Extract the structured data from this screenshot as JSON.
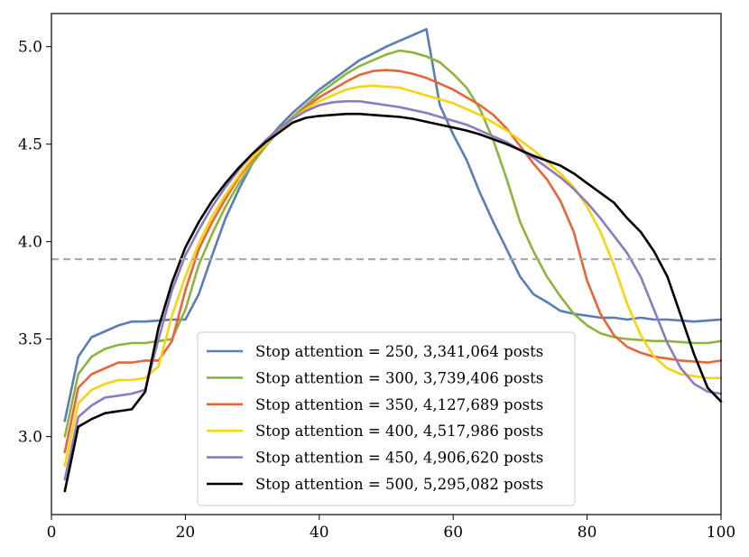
{
  "chart_data": {
    "type": "line",
    "title": "",
    "xlabel": "",
    "ylabel": "",
    "xlim": [
      0,
      100
    ],
    "ylim": [
      2.6,
      5.17
    ],
    "xticks": [
      0,
      20,
      40,
      60,
      80,
      100
    ],
    "xtick_labels": [
      "0",
      "20",
      "40",
      "60",
      "80",
      "100"
    ],
    "yticks": [
      3.0,
      3.5,
      4.0,
      4.5,
      5.0
    ],
    "ytick_labels": [
      "3.0",
      "3.5",
      "4.0",
      "4.5",
      "5.0"
    ],
    "grid": false,
    "legend_position": "bottom-center",
    "reference_line": {
      "y": 3.91,
      "style": "dashed",
      "color": "#aaaaaa"
    },
    "series": [
      {
        "name": "Stop attention = 250, 3,341,064 posts",
        "color": "#5a7db5",
        "x": [
          2,
          4,
          6,
          8,
          10,
          12,
          14,
          16,
          18,
          20,
          22,
          24,
          26,
          28,
          30,
          32,
          34,
          36,
          38,
          40,
          42,
          44,
          46,
          48,
          50,
          52,
          54,
          56,
          58,
          60,
          62,
          64,
          66,
          68,
          70,
          72,
          74,
          76,
          78,
          80,
          82,
          84,
          86,
          88,
          90,
          92,
          94,
          96,
          98,
          100
        ],
        "y": [
          3.08,
          3.41,
          3.51,
          3.54,
          3.57,
          3.59,
          3.59,
          3.595,
          3.6,
          3.6,
          3.73,
          3.93,
          4.12,
          4.27,
          4.4,
          4.51,
          4.59,
          4.66,
          4.72,
          4.78,
          4.83,
          4.88,
          4.93,
          4.965,
          5.0,
          5.03,
          5.06,
          5.09,
          4.7,
          4.55,
          4.42,
          4.25,
          4.1,
          3.96,
          3.82,
          3.73,
          3.69,
          3.645,
          3.63,
          3.62,
          3.61,
          3.61,
          3.6,
          3.61,
          3.6,
          3.6,
          3.595,
          3.59,
          3.595,
          3.6
        ]
      },
      {
        "name": "Stop attention = 300, 3,739,406 posts",
        "color": "#8db53c",
        "x": [
          2,
          4,
          6,
          8,
          10,
          12,
          14,
          16,
          18,
          20,
          22,
          24,
          26,
          28,
          30,
          32,
          34,
          36,
          38,
          40,
          42,
          44,
          46,
          48,
          50,
          52,
          54,
          56,
          58,
          60,
          62,
          64,
          66,
          68,
          70,
          72,
          74,
          76,
          78,
          80,
          82,
          84,
          86,
          88,
          90,
          92,
          94,
          96,
          98,
          100
        ],
        "y": [
          3.0,
          3.32,
          3.41,
          3.45,
          3.47,
          3.48,
          3.48,
          3.49,
          3.5,
          3.65,
          3.88,
          4.04,
          4.18,
          4.3,
          4.4,
          4.49,
          4.57,
          4.64,
          4.7,
          4.76,
          4.81,
          4.86,
          4.9,
          4.93,
          4.96,
          4.98,
          4.97,
          4.95,
          4.92,
          4.86,
          4.79,
          4.68,
          4.52,
          4.32,
          4.1,
          3.95,
          3.82,
          3.72,
          3.63,
          3.57,
          3.53,
          3.51,
          3.5,
          3.495,
          3.49,
          3.49,
          3.485,
          3.48,
          3.48,
          3.49
        ]
      },
      {
        "name": "Stop attention = 350, 4,127,689 posts",
        "color": "#e8643a",
        "x": [
          2,
          4,
          6,
          8,
          10,
          12,
          14,
          16,
          18,
          20,
          22,
          24,
          26,
          28,
          30,
          32,
          34,
          36,
          38,
          40,
          42,
          44,
          46,
          48,
          50,
          52,
          54,
          56,
          58,
          60,
          62,
          64,
          66,
          68,
          70,
          72,
          74,
          76,
          78,
          80,
          82,
          84,
          86,
          88,
          90,
          92,
          94,
          96,
          98,
          100
        ],
        "y": [
          2.92,
          3.25,
          3.32,
          3.35,
          3.38,
          3.38,
          3.39,
          3.39,
          3.49,
          3.75,
          3.96,
          4.1,
          4.22,
          4.33,
          4.42,
          4.5,
          4.57,
          4.63,
          4.69,
          4.74,
          4.78,
          4.82,
          4.855,
          4.875,
          4.88,
          4.875,
          4.86,
          4.84,
          4.81,
          4.78,
          4.74,
          4.7,
          4.65,
          4.58,
          4.49,
          4.4,
          4.32,
          4.21,
          4.05,
          3.8,
          3.63,
          3.52,
          3.46,
          3.43,
          3.41,
          3.4,
          3.39,
          3.385,
          3.38,
          3.39
        ]
      },
      {
        "name": "Stop attention = 400, 4,517,986 posts",
        "color": "#f7d40f",
        "x": [
          2,
          4,
          6,
          8,
          10,
          12,
          14,
          16,
          18,
          20,
          22,
          24,
          26,
          28,
          30,
          32,
          34,
          36,
          38,
          40,
          42,
          44,
          46,
          48,
          50,
          52,
          54,
          56,
          58,
          60,
          62,
          64,
          66,
          68,
          70,
          72,
          74,
          76,
          78,
          80,
          82,
          84,
          86,
          88,
          90,
          92,
          94,
          96,
          98,
          100
        ],
        "y": [
          2.85,
          3.17,
          3.24,
          3.27,
          3.29,
          3.29,
          3.3,
          3.36,
          3.62,
          3.82,
          3.99,
          4.13,
          4.24,
          4.34,
          4.43,
          4.5,
          4.57,
          4.63,
          4.68,
          4.72,
          4.75,
          4.78,
          4.795,
          4.8,
          4.795,
          4.79,
          4.77,
          4.75,
          4.73,
          4.71,
          4.68,
          4.65,
          4.61,
          4.57,
          4.52,
          4.47,
          4.41,
          4.35,
          4.28,
          4.18,
          4.05,
          3.88,
          3.68,
          3.52,
          3.41,
          3.35,
          3.32,
          3.31,
          3.3,
          3.3
        ]
      },
      {
        "name": "Stop attention = 450, 4,906,620 posts",
        "color": "#8c7bbd",
        "x": [
          2,
          4,
          6,
          8,
          10,
          12,
          14,
          16,
          18,
          20,
          22,
          24,
          26,
          28,
          30,
          32,
          34,
          36,
          38,
          40,
          42,
          44,
          46,
          48,
          50,
          52,
          54,
          56,
          58,
          60,
          62,
          64,
          66,
          68,
          70,
          72,
          74,
          76,
          78,
          80,
          82,
          84,
          86,
          88,
          90,
          92,
          94,
          96,
          98,
          100
        ],
        "y": [
          2.78,
          3.1,
          3.16,
          3.2,
          3.21,
          3.22,
          3.24,
          3.5,
          3.75,
          3.93,
          4.06,
          4.18,
          4.28,
          4.37,
          4.45,
          4.52,
          4.58,
          4.63,
          4.67,
          4.7,
          4.715,
          4.72,
          4.72,
          4.71,
          4.7,
          4.69,
          4.675,
          4.66,
          4.64,
          4.62,
          4.6,
          4.57,
          4.54,
          4.51,
          4.47,
          4.43,
          4.38,
          4.33,
          4.27,
          4.2,
          4.12,
          4.03,
          3.94,
          3.82,
          3.65,
          3.48,
          3.35,
          3.27,
          3.23,
          3.22
        ]
      },
      {
        "name": "Stop attention = 500, 5,295,082 posts",
        "color": "#000000",
        "x": [
          2,
          4,
          6,
          8,
          10,
          12,
          14,
          16,
          18,
          20,
          22,
          24,
          26,
          28,
          30,
          32,
          34,
          36,
          38,
          40,
          42,
          44,
          46,
          48,
          50,
          52,
          54,
          56,
          58,
          60,
          62,
          64,
          66,
          68,
          70,
          72,
          74,
          76,
          78,
          80,
          82,
          84,
          86,
          88,
          90,
          92,
          94,
          96,
          98,
          100
        ],
        "y": [
          2.72,
          3.05,
          3.09,
          3.12,
          3.13,
          3.14,
          3.23,
          3.56,
          3.79,
          3.97,
          4.1,
          4.21,
          4.3,
          4.38,
          4.45,
          4.51,
          4.56,
          4.61,
          4.635,
          4.645,
          4.65,
          4.655,
          4.655,
          4.65,
          4.645,
          4.64,
          4.63,
          4.615,
          4.6,
          4.585,
          4.57,
          4.55,
          4.525,
          4.5,
          4.47,
          4.44,
          4.415,
          4.39,
          4.35,
          4.3,
          4.25,
          4.2,
          4.12,
          4.05,
          3.95,
          3.82,
          3.62,
          3.42,
          3.25,
          3.18
        ]
      }
    ]
  }
}
